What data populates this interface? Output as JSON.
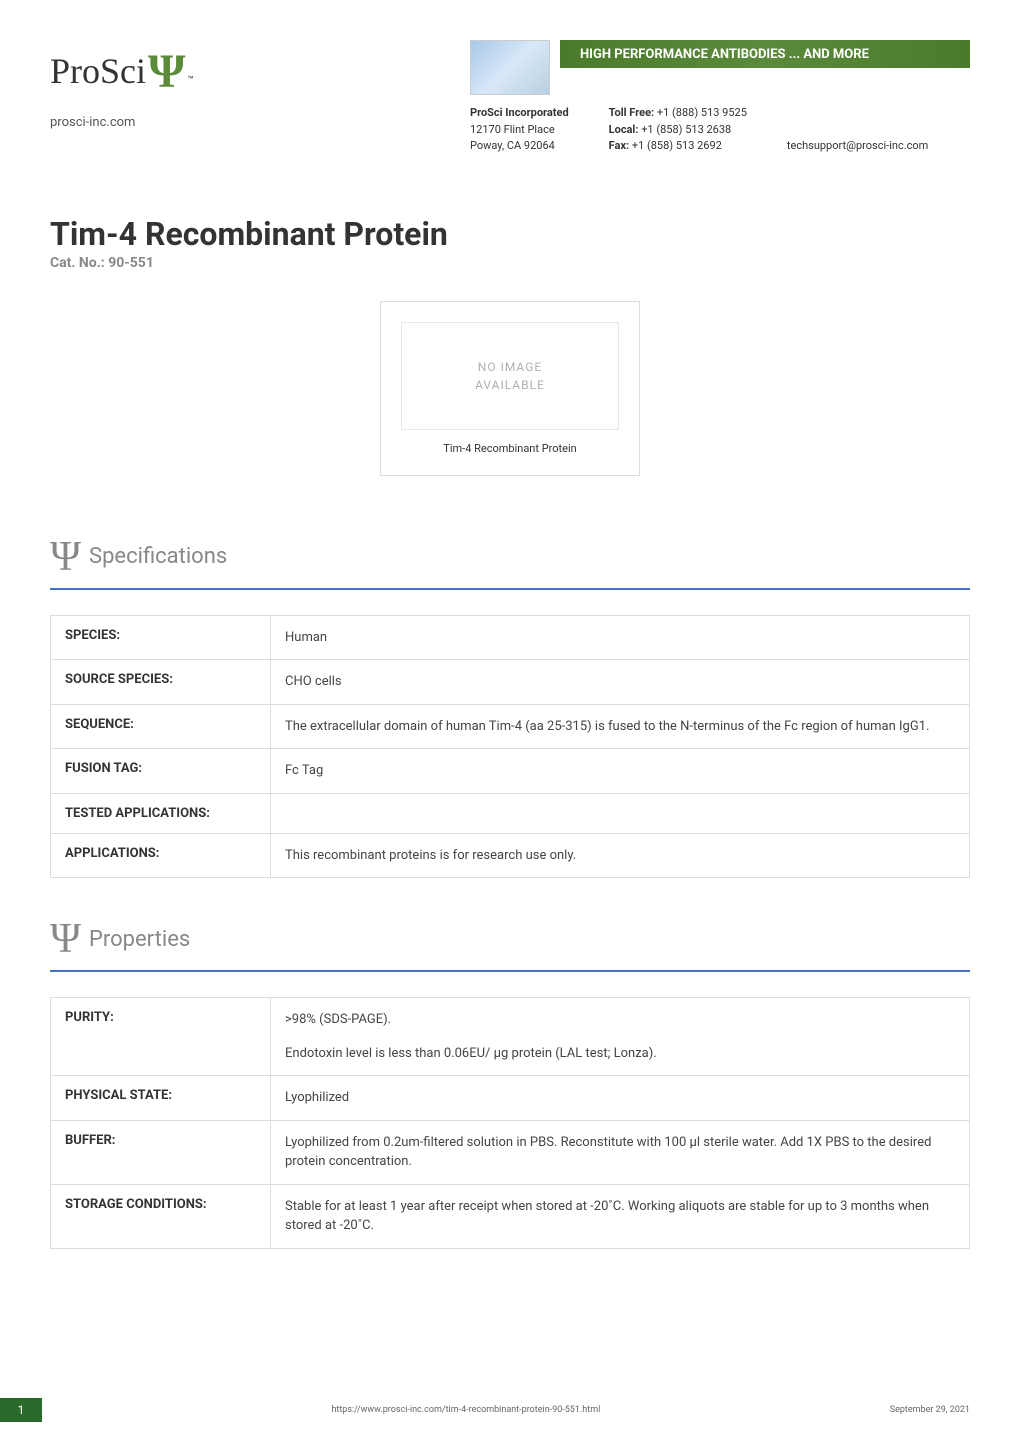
{
  "header": {
    "logo_text": "ProSci",
    "logo_tm": "™",
    "website": "prosci-inc.com",
    "banner_text": "HIGH PERFORMANCE ANTIBODIES ... AND MORE",
    "banner_bg_colors": [
      "#4a7a2a",
      "#5a8a3a",
      "#4a7a2a"
    ],
    "company_name": "ProSci Incorporated",
    "address_line1": "12170 Flint Place",
    "address_line2": "Poway, CA 92064",
    "toll_free_label": "Toll Free:",
    "toll_free": "+1 (888) 513 9525",
    "local_label": "Local:",
    "local": "+1 (858) 513 2638",
    "fax_label": "Fax:",
    "fax": "+1 (858) 513 2692",
    "support_email": "techsupport@prosci-inc.com"
  },
  "title": {
    "main": "Tim-4 Recombinant Protein",
    "cat_no": "Cat. No.: 90-551"
  },
  "product_image": {
    "placeholder_line1": "NO IMAGE",
    "placeholder_line2": "AVAILABLE",
    "caption": "Tim-4 Recombinant Protein"
  },
  "sections": {
    "specifications": {
      "title": "Specifications",
      "rows": [
        {
          "label": "SPECIES:",
          "value": "Human"
        },
        {
          "label": "SOURCE SPECIES:",
          "value": "CHO cells"
        },
        {
          "label": "SEQUENCE:",
          "value": "The extracellular domain of human Tim-4 (aa 25-315) is fused to the N-terminus of the Fc region of human IgG1."
        },
        {
          "label": "FUSION TAG:",
          "value": "Fc Tag"
        },
        {
          "label": "TESTED APPLICATIONS:",
          "value": ""
        },
        {
          "label": "APPLICATIONS:",
          "value": "This recombinant proteins is for research use only."
        }
      ]
    },
    "properties": {
      "title": "Properties",
      "rows": [
        {
          "label": "PURITY:",
          "value_line1": ">98% (SDS-PAGE).",
          "value_line2": "Endotoxin level is less than 0.06EU/ μg protein (LAL test; Lonza)."
        },
        {
          "label": "PHYSICAL STATE:",
          "value": "Lyophilized"
        },
        {
          "label": "BUFFER:",
          "value": "Lyophilized from 0.2um-filtered solution in PBS. Reconstitute with 100 μl sterile water. Add 1X PBS to the desired protein concentration."
        },
        {
          "label": "STORAGE CONDITIONS:",
          "value": "Stable for at least 1 year after receipt when stored at -20˚C. Working aliquots are stable for up to 3 months when stored at -20˚C."
        }
      ]
    }
  },
  "footer": {
    "page_number": "1",
    "url": "https://www.prosci-inc.com/tim-4-recombinant-protein-90-551.html",
    "date": "September 29, 2021"
  },
  "colors": {
    "accent_green": "#5a8a3a",
    "section_border": "#4472c4",
    "text_primary": "#333333",
    "text_muted": "#888888",
    "table_border": "#dddddd",
    "footer_page_bg": "#2a6a2a"
  }
}
